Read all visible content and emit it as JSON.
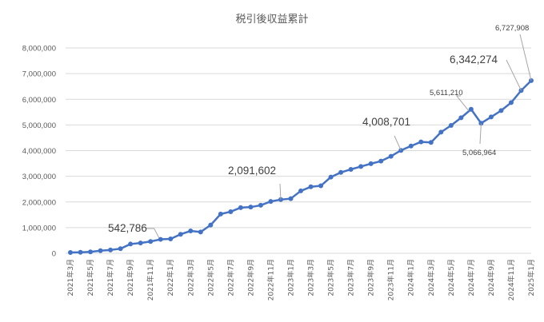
{
  "chart_data": {
    "type": "line",
    "title": "税引後収益累計",
    "ylim": [
      0,
      8000000
    ],
    "yticks": [
      0,
      1000000,
      2000000,
      3000000,
      4000000,
      5000000,
      6000000,
      7000000,
      8000000
    ],
    "ytick_labels": [
      "0",
      "1,000,000",
      "2,000,000",
      "3,000,000",
      "4,000,000",
      "5,000,000",
      "6,000,000",
      "7,000,000",
      "8,000,000"
    ],
    "grid": true,
    "x": [
      "2021年3月",
      "2021年4月",
      "2021年5月",
      "2021年6月",
      "2021年7月",
      "2021年8月",
      "2021年9月",
      "2021年10月",
      "2021年11月",
      "2021年12月",
      "2022年1月",
      "2022年2月",
      "2022年3月",
      "2022年4月",
      "2022年5月",
      "2022年6月",
      "2022年7月",
      "2022年8月",
      "2022年9月",
      "2022年10月",
      "2022年11月",
      "2022年12月",
      "2023年1月",
      "2023年2月",
      "2023年3月",
      "2023年4月",
      "2023年5月",
      "2023年6月",
      "2023年7月",
      "2023年8月",
      "2023年9月",
      "2023年10月",
      "2023年11月",
      "2023年12月",
      "2024年1月",
      "2024年2月",
      "2024年3月",
      "2024年4月",
      "2024年5月",
      "2024年6月",
      "2024年7月",
      "2024年8月",
      "2024年9月",
      "2024年10月",
      "2024年11月",
      "2024年12月",
      "2025年1月"
    ],
    "xtick_labels": [
      "2021年3月",
      "2021年5月",
      "2021年7月",
      "2021年9月",
      "2021年11月",
      "2022年1月",
      "2022年3月",
      "2022年5月",
      "2022年7月",
      "2022年9月",
      "2022年11月",
      "2023年1月",
      "2023年3月",
      "2023年5月",
      "2023年7月",
      "2023年9月",
      "2023年11月",
      "2024年1月",
      "2024年3月",
      "2024年5月",
      "2024年7月",
      "2024年9月",
      "2024年11月",
      "2025年1月"
    ],
    "series": [
      {
        "values": [
          30000,
          40000,
          55000,
          100000,
          130000,
          180000,
          360000,
          400000,
          460000,
          542786,
          560000,
          740000,
          870000,
          830000,
          1100000,
          1530000,
          1620000,
          1780000,
          1800000,
          1870000,
          2020000,
          2091602,
          2130000,
          2430000,
          2590000,
          2630000,
          2970000,
          3150000,
          3270000,
          3380000,
          3490000,
          3590000,
          3780000,
          4008701,
          4180000,
          4340000,
          4320000,
          4720000,
          4980000,
          5280000,
          5611210,
          5066964,
          5310000,
          5560000,
          5870000,
          6342274,
          6727908
        ],
        "color": "#4472c4"
      }
    ],
    "annotations": [
      {
        "index": 9,
        "text": "542,786",
        "size": "large"
      },
      {
        "index": 21,
        "text": "2,091,602",
        "size": "large"
      },
      {
        "index": 33,
        "text": "4,008,701",
        "size": "large"
      },
      {
        "index": 40,
        "text": "5,611,210",
        "size": "small"
      },
      {
        "index": 41,
        "text": "5,066,964",
        "size": "small"
      },
      {
        "index": 45,
        "text": "6,342,274",
        "size": "large"
      },
      {
        "index": 46,
        "text": "6,727,908",
        "size": "small"
      }
    ]
  }
}
